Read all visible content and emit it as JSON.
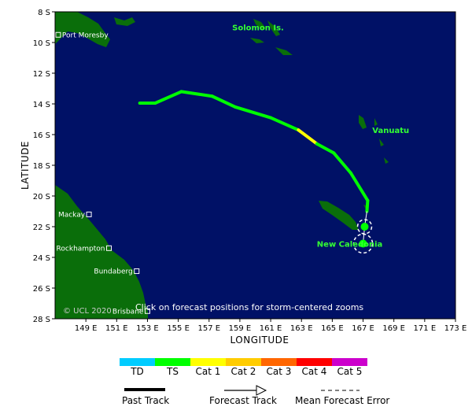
{
  "axes": {
    "x_title": "LONGITUDE",
    "y_title": "LATITUDE",
    "lon_min": 147,
    "lon_max": 173,
    "lat_min": -28,
    "lat_max": -8,
    "x_ticks": [
      "149 E",
      "151 E",
      "153 E",
      "155 E",
      "157 E",
      "159 E",
      "161 E",
      "163 E",
      "165 E",
      "167 E",
      "169 E",
      "171 E",
      "173 E"
    ],
    "y_ticks": [
      "8 S",
      "10 S",
      "12 S",
      "14 S",
      "16 S",
      "18 S",
      "20 S",
      "22 S",
      "24 S",
      "26 S",
      "28 S"
    ]
  },
  "colors": {
    "ocean": "#001166",
    "land": "#0a6e0a",
    "TD": "#00ccff",
    "TS": "#00ff00",
    "Cat 1": "#ffff00",
    "Cat 2": "#ffcc00",
    "Cat 3": "#ff6600",
    "Cat 4": "#ff0000",
    "Cat 5": "#cc00cc"
  },
  "places": [
    {
      "name": "Port Moresby",
      "lon": 147.2,
      "lat": -9.5
    },
    {
      "name": "Mackay",
      "lon": 149.2,
      "lat": -21.2
    },
    {
      "name": "Rockhampton",
      "lon": 150.5,
      "lat": -23.4
    },
    {
      "name": "Bundaberg",
      "lon": 152.3,
      "lat": -24.9
    },
    {
      "name": "Brisbane",
      "lon": 153.0,
      "lat": -27.5
    }
  ],
  "regions": [
    {
      "name": "Solomon Is.",
      "lon": 158.5,
      "lat": -9.0
    },
    {
      "name": "Vanuatu",
      "lon": 167.6,
      "lat": -15.7
    },
    {
      "name": "New Caledonia",
      "lon": 164.0,
      "lat": -23.1
    }
  ],
  "track": {
    "past": [
      {
        "lon": 152.5,
        "lat": -13.95,
        "cat": "TS"
      },
      {
        "lon": 153.5,
        "lat": -13.95,
        "cat": "TS"
      },
      {
        "lon": 155.2,
        "lat": -13.2,
        "cat": "TS"
      },
      {
        "lon": 157.2,
        "lat": -13.5,
        "cat": "TS"
      },
      {
        "lon": 158.7,
        "lat": -14.2,
        "cat": "TS"
      },
      {
        "lon": 161.0,
        "lat": -14.9,
        "cat": "TS"
      },
      {
        "lon": 162.8,
        "lat": -15.7,
        "cat": "Cat 1"
      },
      {
        "lon": 164.0,
        "lat": -16.6,
        "cat": "TS"
      },
      {
        "lon": 165.1,
        "lat": -17.2,
        "cat": "TS"
      },
      {
        "lon": 166.2,
        "lat": -18.5,
        "cat": "TS"
      },
      {
        "lon": 167.3,
        "lat": -20.3,
        "cat": "TS"
      },
      {
        "lon": 167.25,
        "lat": -21.0,
        "cat": "TS"
      }
    ],
    "forecast": [
      {
        "lon": 167.1,
        "lat": -22.0,
        "cat": "TS"
      },
      {
        "lon": 167.0,
        "lat": -23.1,
        "cat": "TS"
      }
    ]
  },
  "map_note": "Click on forecast positions for storm-centered zooms",
  "copyright": "© UCL 2020",
  "legend": {
    "categories": [
      "TD",
      "TS",
      "Cat 1",
      "Cat 2",
      "Cat 3",
      "Cat 4",
      "Cat 5"
    ],
    "past_track": "Past Track",
    "forecast_track": "Forecast Track",
    "mean_error": "Mean Forecast Error"
  }
}
